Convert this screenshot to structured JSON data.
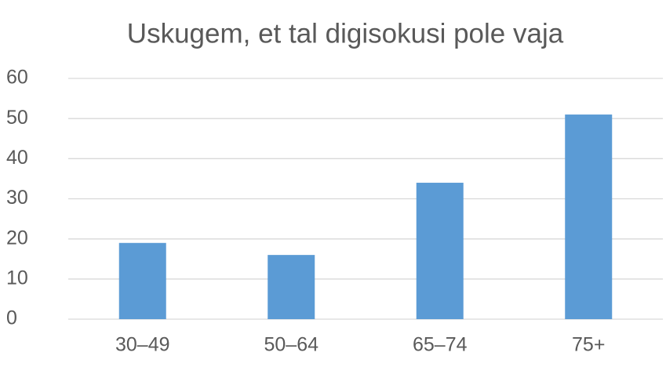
{
  "chart_data": {
    "type": "bar",
    "title": "Uskugem, et tal digisokusi pole vaja",
    "categories": [
      "30–49",
      "50–64",
      "65–74",
      "75+"
    ],
    "values": [
      19,
      16,
      34,
      51
    ],
    "color": "#5b9bd5",
    "ylim": [
      0,
      60
    ],
    "yticks": [
      0,
      10,
      20,
      30,
      40,
      50,
      60
    ],
    "grid": true
  }
}
